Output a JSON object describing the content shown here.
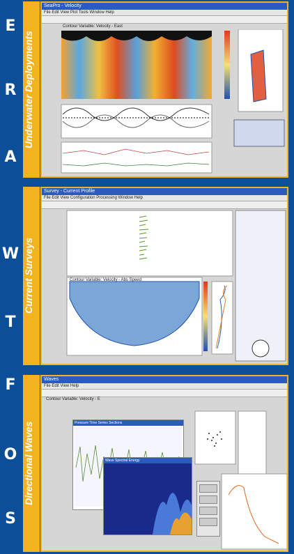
{
  "sidebar_letters": [
    "S",
    "O",
    "F",
    "T",
    "W",
    "A",
    "R",
    "E"
  ],
  "sections": [
    {
      "title": "Underwater Deployments",
      "window_title": "SeaPro - Velocity",
      "menu": "File  Edit  View  Plot  Tools  Window  Help",
      "plot_title": "Contour Variable: Velocity - East"
    },
    {
      "title": "Current Surveys",
      "window_title": "Survey - Current Profile",
      "menu": "File  Edit  View  Configuration  Processing  Window  Help",
      "plot_title": "Contour Variable: Velocity - Abs Speed"
    },
    {
      "title": "Directional Waves",
      "window_title": "Waves",
      "menu": "File  Edit  View  Help",
      "plot_title": "Contour Variable: Velocity - E",
      "sub_window_1": "Pressure Time Series Sections",
      "sub_window_2": "Wave Spectral Energy"
    }
  ],
  "colors": {
    "background": "#0d4e98",
    "accent": "#f2b31e"
  }
}
